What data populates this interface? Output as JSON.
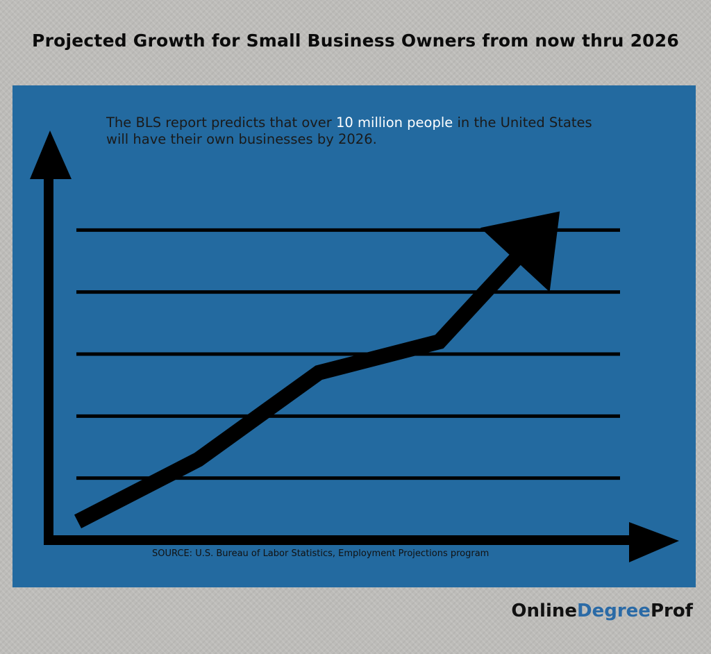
{
  "title": "Projected Growth for Small Business Owners from now thru 2026",
  "caption": {
    "before": "The BLS report predicts that over ",
    "highlight": "10 million people",
    "after": " in the United States will have their own businesses by 2026."
  },
  "source": "SOURCE: U.S. Bureau of Labor Statistics, Employment Projections program",
  "brand": {
    "part1": "Online",
    "part2": "Degree",
    "part3": "Prof"
  },
  "colors": {
    "background": "#bdbcb9",
    "panel": "#236aa0",
    "highlight": "#ffffff",
    "brand_accent": "#2a6aa6",
    "ink": "#000000"
  },
  "chart_data": {
    "type": "line",
    "x": [
      0,
      1,
      2,
      3,
      4
    ],
    "values": [
      0.3,
      1.3,
      2.7,
      3.2,
      5.3
    ],
    "ylim": [
      0,
      6
    ],
    "xlim": [
      0,
      4.5
    ],
    "gridlines": [
      1,
      2,
      3,
      4,
      5
    ],
    "grid": true,
    "trend": "increasing"
  }
}
